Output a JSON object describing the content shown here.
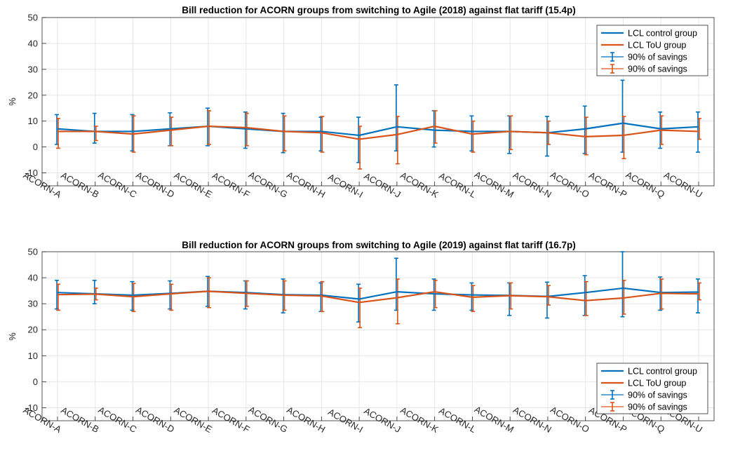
{
  "chart_data": [
    {
      "type": "line",
      "title": "Bill reduction for ACORN groups from switching to Agile (2018) against flat tariff (15.4p)",
      "xlabel": "",
      "ylabel": "%",
      "ylim": [
        -15,
        50
      ],
      "yticks": [
        -10,
        0,
        10,
        20,
        30,
        40,
        50
      ],
      "grid": true,
      "legend_position": "top-right",
      "categories": [
        "ACORN-A",
        "ACORN-B",
        "ACORN-C",
        "ACORN-D",
        "ACORN-E",
        "ACORN-F",
        "ACORN-G",
        "ACORN-H",
        "ACORN-I",
        "ACORN-J",
        "ACORN-K",
        "ACORN-L",
        "ACORN-M",
        "ACORN-N",
        "ACORN-O",
        "ACORN-P",
        "ACORN-Q",
        "ACORN-U"
      ],
      "series": [
        {
          "name": "LCL control group",
          "color": "#0072BD",
          "values": [
            7.0,
            6.0,
            6.0,
            7.0,
            8.0,
            7.0,
            6.0,
            6.0,
            4.5,
            7.8,
            6.5,
            6.0,
            6.0,
            5.5,
            7.0,
            9.2,
            7.0,
            7.8
          ]
        },
        {
          "name": "LCL ToU group",
          "color": "#D95319",
          "values": [
            6.0,
            6.0,
            5.0,
            6.5,
            8.0,
            7.5,
            6.0,
            5.5,
            3.0,
            4.8,
            8.0,
            5.0,
            6.0,
            5.5,
            4.0,
            4.5,
            6.5,
            6.0
          ]
        }
      ],
      "error_series": [
        {
          "name": "90% of savings",
          "color": "#0072BD",
          "low": [
            1.0,
            1.5,
            -1.5,
            0.5,
            0.5,
            -0.5,
            -2.2,
            -1.5,
            -6.0,
            -1.5,
            0.0,
            -1.5,
            -2.5,
            -3.5,
            -2.5,
            -2.0,
            -0.5,
            -2.0
          ],
          "high": [
            12.5,
            13.0,
            12.5,
            13.2,
            15.0,
            13.5,
            13.0,
            11.5,
            11.5,
            24.0,
            14.0,
            12.0,
            12.0,
            11.8,
            15.8,
            25.8,
            13.5,
            13.5
          ]
        },
        {
          "name": "90% of savings",
          "color": "#D95319",
          "low": [
            -0.5,
            2.5,
            -2.0,
            0.5,
            1.0,
            0.5,
            -1.5,
            -2.0,
            -8.5,
            -6.5,
            1.5,
            -2.0,
            -1.0,
            1.0,
            -3.0,
            -4.5,
            1.0,
            3.0
          ],
          "high": [
            11.0,
            8.0,
            12.0,
            11.5,
            14.0,
            13.0,
            12.0,
            11.8,
            8.0,
            11.8,
            14.0,
            10.0,
            12.0,
            10.0,
            11.5,
            11.8,
            12.0,
            11.0
          ]
        }
      ]
    },
    {
      "type": "line",
      "title": "Bill reduction for ACORN groups from switching to Agile (2019) against flat tariff (16.7p)",
      "xlabel": "",
      "ylabel": "%",
      "ylim": [
        -15,
        50
      ],
      "yticks": [
        -10,
        0,
        10,
        20,
        30,
        40,
        50
      ],
      "grid": true,
      "legend_position": "bottom-right",
      "categories": [
        "ACORN-A",
        "ACORN-B",
        "ACORN-C",
        "ACORN-D",
        "ACORN-E",
        "ACORN-F",
        "ACORN-G",
        "ACORN-H",
        "ACORN-I",
        "ACORN-J",
        "ACORN-K",
        "ACORN-L",
        "ACORN-M",
        "ACORN-N",
        "ACORN-O",
        "ACORN-P",
        "ACORN-Q",
        "ACORN-U"
      ],
      "series": [
        {
          "name": "LCL control group",
          "color": "#0072BD",
          "values": [
            34.3,
            33.8,
            33.3,
            34.0,
            34.8,
            34.3,
            33.5,
            33.3,
            31.8,
            34.6,
            33.8,
            33.4,
            33.2,
            32.8,
            34.3,
            36.0,
            34.3,
            34.5
          ]
        },
        {
          "name": "LCL ToU group",
          "color": "#D95319",
          "values": [
            33.5,
            33.7,
            32.7,
            33.8,
            34.8,
            34.0,
            33.3,
            33.0,
            30.5,
            32.3,
            34.6,
            32.5,
            33.1,
            32.7,
            31.2,
            32.2,
            34.0,
            33.8
          ]
        }
      ],
      "error_series": [
        {
          "name": "90% of savings",
          "color": "#0072BD",
          "low": [
            28.0,
            30.0,
            27.5,
            28.0,
            29.0,
            28.0,
            26.5,
            27.0,
            23.0,
            27.5,
            27.5,
            27.5,
            25.5,
            24.5,
            25.5,
            25.0,
            27.5,
            26.5
          ],
          "high": [
            39.0,
            39.0,
            38.5,
            38.8,
            40.5,
            38.8,
            39.5,
            38.0,
            37.5,
            47.5,
            39.5,
            38.0,
            38.0,
            38.3,
            40.8,
            50.0,
            40.3,
            39.5
          ]
        },
        {
          "name": "90% of savings",
          "color": "#D95319",
          "low": [
            27.5,
            31.5,
            27.0,
            27.5,
            28.5,
            29.0,
            27.5,
            27.0,
            20.8,
            22.3,
            28.5,
            27.0,
            28.0,
            29.5,
            25.5,
            26.0,
            28.0,
            31.5
          ],
          "high": [
            37.5,
            36.0,
            37.8,
            37.5,
            40.0,
            38.8,
            38.8,
            38.5,
            36.0,
            39.5,
            39.0,
            37.0,
            38.0,
            37.0,
            38.5,
            39.0,
            39.5,
            38.0
          ]
        }
      ]
    }
  ]
}
